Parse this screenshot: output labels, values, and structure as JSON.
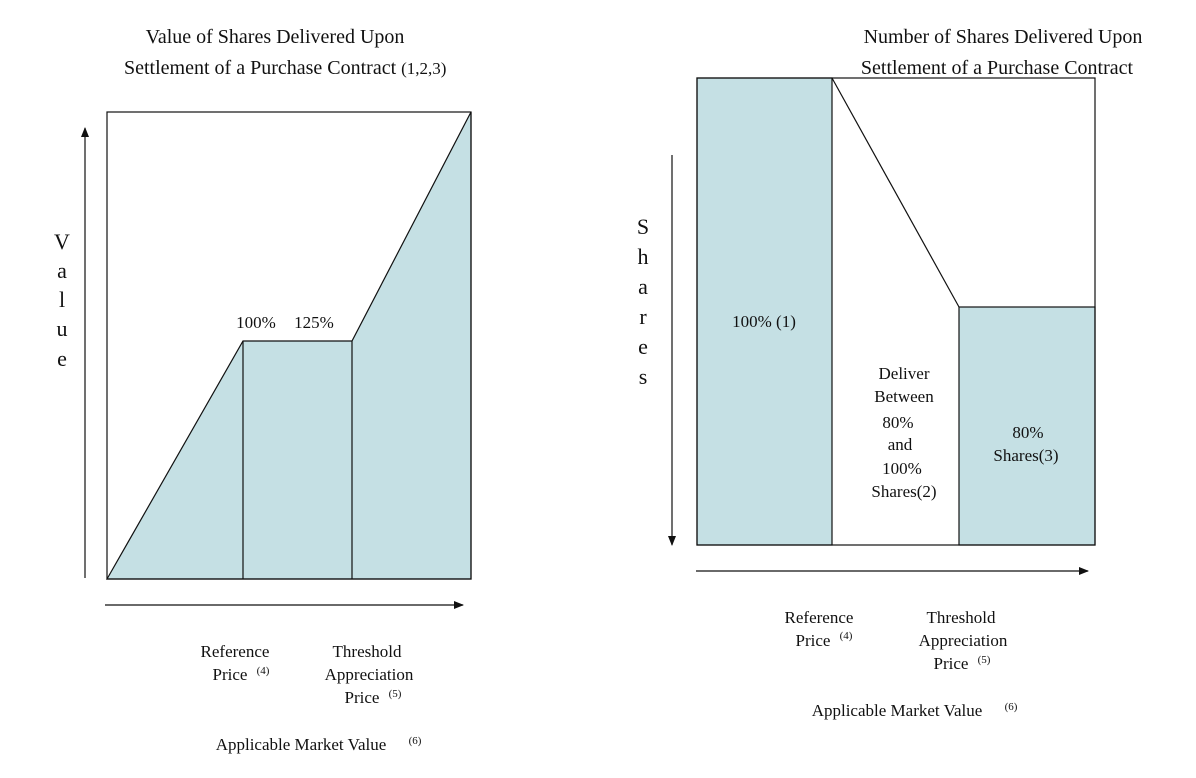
{
  "left_diagram": {
    "title_line1": "Value of Shares Delivered Upon",
    "title_line2": "Settlement of a Purchase Contract",
    "title_note": "(1,2,3)",
    "y_axis_label_letters": [
      "V",
      "a",
      "l",
      "u",
      "e"
    ],
    "plateau_label_start": "100%",
    "plateau_label_end": "125%",
    "ref_price_line1": "Reference",
    "ref_price_line2": "Price",
    "ref_price_note": "(4)",
    "threshold_line1": "Threshold",
    "threshold_line2": "Appreciation",
    "threshold_line3": "Price",
    "threshold_note": "(5)",
    "x_axis_label": "Applicable Market Value",
    "x_axis_note": "(6)"
  },
  "right_diagram": {
    "title_line1": "Number of Shares Delivered Upon",
    "title_line2": "Settlement of a Purchase Contract",
    "y_axis_label_letters": [
      "S",
      "h",
      "a",
      "r",
      "e",
      "s"
    ],
    "region1_label": "100% (1)",
    "region2_lines": [
      "Deliver",
      "Between",
      "80%",
      "and",
      "100%",
      "Shares(2)"
    ],
    "region3_lines": [
      "80%",
      "Shares(3)"
    ],
    "ref_price_line1": "Reference",
    "ref_price_line2": "Price",
    "ref_price_note": "(4)",
    "threshold_line1": "Threshold",
    "threshold_line2": "Appreciation",
    "threshold_line3": "Price",
    "threshold_note": "(5)",
    "x_axis_label": "Applicable Market Value",
    "x_axis_note": "(6)"
  },
  "colors": {
    "shade": "#c5e0e4",
    "line": "#111111"
  }
}
